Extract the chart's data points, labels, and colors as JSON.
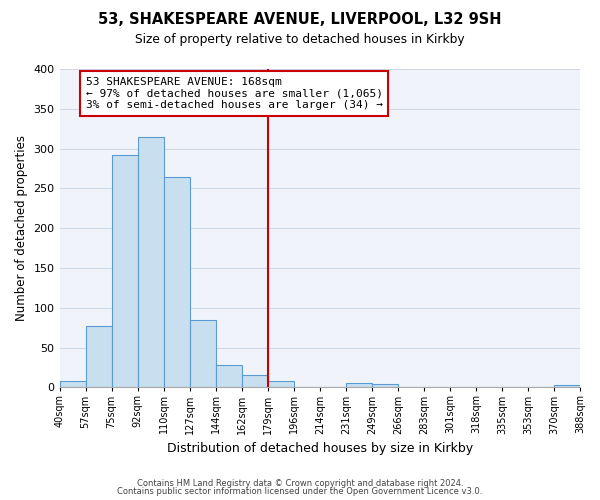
{
  "title": "53, SHAKESPEARE AVENUE, LIVERPOOL, L32 9SH",
  "subtitle": "Size of property relative to detached houses in Kirkby",
  "xlabel": "Distribution of detached houses by size in Kirkby",
  "ylabel": "Number of detached properties",
  "bin_labels": [
    "40sqm",
    "57sqm",
    "75sqm",
    "92sqm",
    "110sqm",
    "127sqm",
    "144sqm",
    "162sqm",
    "179sqm",
    "196sqm",
    "214sqm",
    "231sqm",
    "249sqm",
    "266sqm",
    "283sqm",
    "301sqm",
    "318sqm",
    "335sqm",
    "353sqm",
    "370sqm",
    "388sqm"
  ],
  "bar_heights": [
    8,
    77,
    292,
    314,
    264,
    85,
    28,
    16,
    8,
    0,
    0,
    5,
    4,
    0,
    0,
    0,
    0,
    0,
    0,
    3
  ],
  "bar_color": "#c8dff0",
  "bar_edge_color": "#5b9bd5",
  "vline_x": 7.5,
  "vline_color": "#cc0000",
  "ylim": [
    0,
    400
  ],
  "yticks": [
    0,
    50,
    100,
    150,
    200,
    250,
    300,
    350,
    400
  ],
  "annotation_title": "53 SHAKESPEARE AVENUE: 168sqm",
  "annotation_line1": "← 97% of detached houses are smaller (1,065)",
  "annotation_line2": "3% of semi-detached houses are larger (34) →",
  "annotation_box_facecolor": "#ffffff",
  "annotation_box_edgecolor": "#cc0000",
  "footer1": "Contains HM Land Registry data © Crown copyright and database right 2024.",
  "footer2": "Contains public sector information licensed under the Open Government Licence v3.0.",
  "bg_color": "#f0f4fa",
  "grid_color": "#d0d8e8"
}
